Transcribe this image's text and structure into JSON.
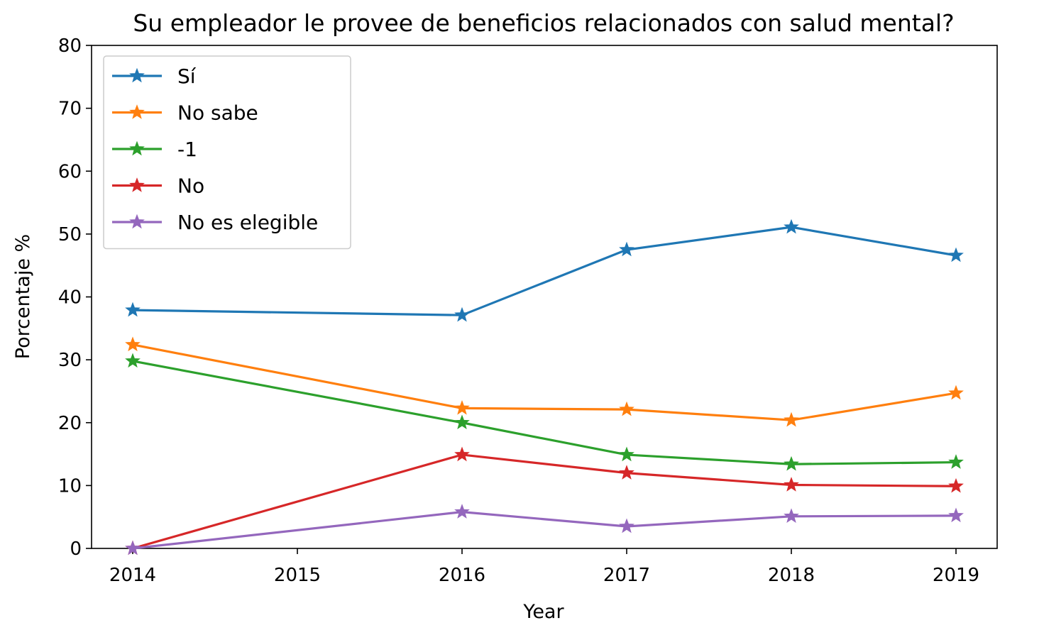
{
  "chart_data": {
    "type": "line",
    "title": "Su empleador le provee de beneficios relacionados con salud mental?",
    "xlabel": "Year",
    "ylabel": "Porcentaje %",
    "x": [
      2014,
      2016,
      2017,
      2018,
      2019
    ],
    "x_ticks": [
      "2014",
      "2015",
      "2016",
      "2017",
      "2018",
      "2019"
    ],
    "y_ticks": [
      "0",
      "10",
      "20",
      "30",
      "40",
      "50",
      "60",
      "70",
      "80"
    ],
    "xlim": [
      2013.75,
      2019.25
    ],
    "ylim": [
      0,
      80
    ],
    "grid": false,
    "legend_position": "upper-left",
    "marker": "star",
    "series": [
      {
        "name": "Sí",
        "color": "#1f77b4",
        "values": [
          37.9,
          37.1,
          47.5,
          51.1,
          46.6
        ]
      },
      {
        "name": "No sabe",
        "color": "#ff7f0e",
        "values": [
          32.4,
          22.3,
          22.1,
          20.4,
          24.7
        ]
      },
      {
        "name": "-1",
        "color": "#2ca02c",
        "values": [
          29.8,
          20.0,
          14.9,
          13.4,
          13.7
        ]
      },
      {
        "name": "No",
        "color": "#d62728",
        "values": [
          0.0,
          14.9,
          12.0,
          10.1,
          9.9
        ]
      },
      {
        "name": "No es elegible",
        "color": "#9467bd",
        "values": [
          0.0,
          5.8,
          3.5,
          5.1,
          5.2
        ]
      }
    ]
  }
}
